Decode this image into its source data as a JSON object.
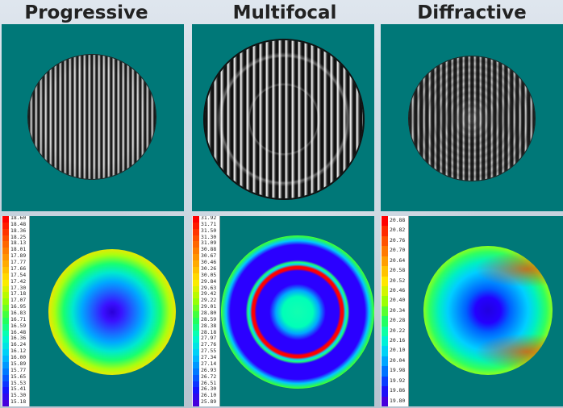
{
  "titles": {
    "progressive": "Progressive",
    "multifocal": "Multifocal",
    "diffractive": "Diffractive"
  },
  "colors": {
    "panel_bg": "#007878",
    "title_text": "#222222"
  },
  "legends": {
    "progressive": [
      "18.60",
      "18.48",
      "18.36",
      "18.25",
      "18.13",
      "18.01",
      "17.89",
      "17.77",
      "17.66",
      "17.54",
      "17.42",
      "17.30",
      "17.18",
      "17.07",
      "16.95",
      "16.83",
      "16.71",
      "16.59",
      "16.48",
      "16.36",
      "16.24",
      "16.12",
      "16.00",
      "15.89",
      "15.77",
      "15.65",
      "15.53",
      "15.41",
      "15.30",
      "15.18"
    ],
    "multifocal": [
      "31.92",
      "31.71",
      "31.50",
      "31.30",
      "31.09",
      "30.88",
      "30.67",
      "30.46",
      "30.26",
      "30.05",
      "29.84",
      "29.63",
      "29.42",
      "29.22",
      "29.01",
      "28.80",
      "28.59",
      "28.38",
      "28.18",
      "27.97",
      "27.76",
      "27.55",
      "27.34",
      "27.14",
      "26.93",
      "26.72",
      "26.51",
      "26.30",
      "26.10",
      "25.89"
    ],
    "diffractive": [
      "20.88",
      "20.82",
      "20.76",
      "20.70",
      "20.64",
      "20.58",
      "20.52",
      "20.46",
      "20.40",
      "20.34",
      "20.28",
      "20.22",
      "20.16",
      "20.10",
      "20.04",
      "19.98",
      "19.92",
      "19.86",
      "19.80"
    ]
  }
}
